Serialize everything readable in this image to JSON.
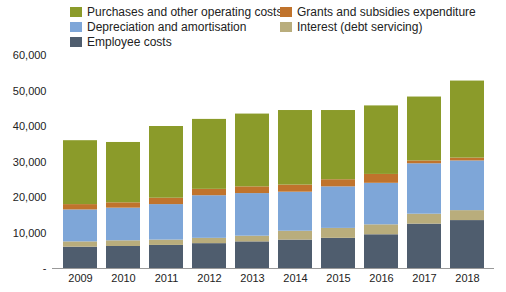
{
  "chart_data": {
    "type": "bar",
    "stacked": true,
    "legend": "top",
    "categories": [
      "2009",
      "2010",
      "2011",
      "2012",
      "2013",
      "2014",
      "2015",
      "2016",
      "2017",
      "2018"
    ],
    "series": [
      {
        "name": "Employee costs",
        "color": "#4f5d6e",
        "values": [
          6000,
          6200,
          6500,
          7000,
          7500,
          8000,
          8500,
          9500,
          12500,
          13500
        ]
      },
      {
        "name": "Interest (debt servicing)",
        "color": "#b9ad7c",
        "values": [
          1500,
          1600,
          1500,
          1500,
          1600,
          2500,
          2800,
          2800,
          2800,
          2800
        ]
      },
      {
        "name": "Depreciation and amortisation",
        "color": "#7ea6d8",
        "values": [
          9000,
          9200,
          10000,
          12000,
          12000,
          11000,
          11700,
          11700,
          14200,
          14000
        ]
      },
      {
        "name": "Grants and subsidies expenditure",
        "color": "#c0732c",
        "values": [
          1500,
          1500,
          1800,
          1800,
          1900,
          2000,
          2000,
          2500,
          800,
          800
        ]
      },
      {
        "name": "Purchases and other operating costs",
        "color": "#8b9b2a",
        "values": [
          18000,
          17000,
          20200,
          19700,
          20500,
          21000,
          19500,
          19300,
          18000,
          21700
        ]
      }
    ],
    "ylim": [
      0,
      60000
    ],
    "yticks": [
      {
        "value": 0,
        "label": "-"
      },
      {
        "value": 10000,
        "label": "10,000"
      },
      {
        "value": 20000,
        "label": "20,000"
      },
      {
        "value": 30000,
        "label": "30,000"
      },
      {
        "value": 40000,
        "label": "40,000"
      },
      {
        "value": 50000,
        "label": "50,000"
      },
      {
        "value": 60000,
        "label": "60,000"
      }
    ],
    "grid": false
  }
}
